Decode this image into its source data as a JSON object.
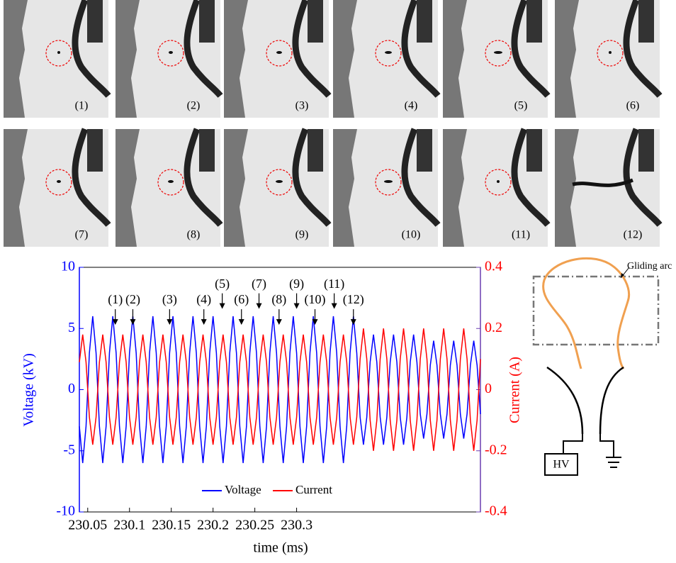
{
  "panels": {
    "labels": [
      "(1)",
      "(2)",
      "(3)",
      "(4)",
      "(5)",
      "(6)",
      "(7)",
      "(8)",
      "(9)",
      "(10)",
      "(11)",
      "(12)"
    ]
  },
  "diagram": {
    "arc_label": "Gliding arc",
    "source_label": "HV"
  },
  "chart_data": {
    "type": "line",
    "xlabel": "time (ms)",
    "ylabel": "Voltage (kV)",
    "y2label": "Current (A)",
    "x": [
      230.04,
      230.044,
      230.048,
      230.052,
      230.056,
      230.06,
      230.064,
      230.068,
      230.072,
      230.076,
      230.08,
      230.084,
      230.088,
      230.092,
      230.096,
      230.1,
      230.104,
      230.108,
      230.112,
      230.116,
      230.12,
      230.124,
      230.128,
      230.132,
      230.136,
      230.14,
      230.144,
      230.148,
      230.152,
      230.156,
      230.16,
      230.164,
      230.168,
      230.172,
      230.176,
      230.18,
      230.184,
      230.188,
      230.192,
      230.196,
      230.2,
      230.204,
      230.208,
      230.212,
      230.216,
      230.22,
      230.224,
      230.228,
      230.232,
      230.236,
      230.24,
      230.244,
      230.248,
      230.252,
      230.256,
      230.26,
      230.264,
      230.268,
      230.272,
      230.276,
      230.28,
      230.284,
      230.288,
      230.292,
      230.296,
      230.3,
      230.304,
      230.308,
      230.312,
      230.316,
      230.32,
      230.324,
      230.328,
      230.332,
      230.336,
      230.34,
      230.344,
      230.348,
      230.352,
      230.356,
      230.36,
      230.364,
      230.368,
      230.372,
      230.376,
      230.38,
      230.384,
      230.388,
      230.392,
      230.396,
      230.4,
      230.404,
      230.408,
      230.412,
      230.416,
      230.42,
      230.424,
      230.428,
      230.432,
      230.436,
      230.44,
      230.444,
      230.448,
      230.452,
      230.456,
      230.46,
      230.464,
      230.468,
      230.472,
      230.476,
      230.48,
      230.484,
      230.488,
      230.492,
      230.496,
      230.5,
      230.504,
      230.508,
      230.512,
      230.516,
      230.52
    ],
    "series": [
      {
        "name": "Voltage",
        "color": "#0000ff",
        "axis": "y",
        "values": [
          -3,
          -6,
          -3,
          3,
          6,
          3,
          -3,
          -6,
          -3,
          3,
          6,
          3,
          -3,
          -6,
          -3,
          3,
          6,
          3,
          -3,
          -6,
          -3,
          3,
          6,
          3,
          -3,
          -6,
          -3,
          3,
          6,
          3,
          -3,
          -6,
          -3,
          3,
          6,
          3,
          -3,
          -6,
          -3,
          3,
          6,
          3,
          -3,
          -6,
          -3,
          3,
          6,
          3,
          -3,
          -6,
          -3,
          3,
          6,
          3,
          -3,
          -6,
          -3,
          3,
          6,
          3,
          -3,
          -6,
          -3,
          3,
          6,
          3,
          -3,
          -6,
          -3,
          3,
          6,
          3,
          -3,
          -6,
          -3,
          3,
          6,
          3,
          -3,
          -6,
          -3,
          3,
          6,
          3,
          -2.25,
          -4.5,
          -2.25,
          2.25,
          4.5,
          2.25,
          -2.25,
          -4.5,
          -2.25,
          2.25,
          4.5,
          2.25,
          -2.25,
          -4.5,
          -2.25,
          2.25,
          4.5,
          2.25,
          -2,
          -4,
          -2,
          2,
          4,
          2,
          -2,
          -4,
          -2,
          2,
          4,
          2,
          -2,
          -4,
          -2,
          2,
          4,
          2,
          -2
        ]
      },
      {
        "name": "Current",
        "color": "#ff0000",
        "axis": "y2",
        "values": [
          0.09,
          0.18,
          0.09,
          -0.09,
          -0.18,
          -0.09,
          0.09,
          0.18,
          0.09,
          -0.09,
          -0.18,
          -0.09,
          0.09,
          0.18,
          0.09,
          -0.09,
          -0.18,
          -0.09,
          0.09,
          0.18,
          0.09,
          -0.09,
          -0.18,
          -0.09,
          0.09,
          0.18,
          0.09,
          -0.09,
          -0.18,
          -0.09,
          0.09,
          0.18,
          0.09,
          -0.09,
          -0.18,
          -0.09,
          0.09,
          0.18,
          0.09,
          -0.09,
          -0.18,
          -0.09,
          0.09,
          0.18,
          0.09,
          -0.09,
          -0.18,
          -0.09,
          0.09,
          0.18,
          0.09,
          -0.09,
          -0.18,
          -0.09,
          0.09,
          0.18,
          0.09,
          -0.09,
          -0.18,
          -0.09,
          0.09,
          0.18,
          0.09,
          -0.09,
          -0.18,
          -0.09,
          0.09,
          0.18,
          0.09,
          -0.09,
          -0.18,
          -0.09,
          0.09,
          0.18,
          0.09,
          -0.09,
          -0.18,
          -0.09,
          0.09,
          0.18,
          0.09,
          -0.09,
          -0.18,
          -0.09,
          0.1,
          0.2,
          0.1,
          -0.1,
          -0.2,
          -0.1,
          0.1,
          0.2,
          0.1,
          -0.1,
          -0.2,
          -0.1,
          0.1,
          0.2,
          0.1,
          -0.1,
          -0.2,
          -0.1,
          0.1,
          0.2,
          0.1,
          -0.1,
          -0.2,
          -0.1,
          0.1,
          0.2,
          0.1,
          -0.1,
          -0.2,
          -0.1,
          0.1,
          0.2,
          0.1,
          -0.1,
          -0.2,
          -0.1,
          0.1
        ]
      }
    ],
    "xlim": [
      230.04,
      230.52
    ],
    "xticks": [
      230.05,
      230.1,
      230.15,
      230.2,
      230.25,
      230.3
    ],
    "ylim": [
      -10,
      10
    ],
    "yticks": [
      -10,
      -5,
      0,
      5,
      10
    ],
    "y2lim": [
      -0.4,
      0.4
    ],
    "y2ticks": [
      -0.4,
      -0.2,
      0,
      0.2,
      0.4
    ],
    "legend": "bottom",
    "annotations": [
      {
        "text": "(1)",
        "x": 230.083,
        "y": 5.3
      },
      {
        "text": "(2)",
        "x": 230.104,
        "y": 5.3
      },
      {
        "text": "(3)",
        "x": 230.148,
        "y": 5.3
      },
      {
        "text": "(4)",
        "x": 230.189,
        "y": 5.3
      },
      {
        "text": "(5)",
        "x": 230.211,
        "y": 6.6
      },
      {
        "text": "(6)",
        "x": 230.234,
        "y": 5.3
      },
      {
        "text": "(7)",
        "x": 230.255,
        "y": 6.6
      },
      {
        "text": "(8)",
        "x": 230.279,
        "y": 5.3
      },
      {
        "text": "(9)",
        "x": 230.3,
        "y": 6.6
      },
      {
        "text": "(10)",
        "x": 230.322,
        "y": 5.3
      },
      {
        "text": "(11)",
        "x": 230.345,
        "y": 6.6
      },
      {
        "text": "(12)",
        "x": 230.368,
        "y": 5.3
      }
    ]
  }
}
